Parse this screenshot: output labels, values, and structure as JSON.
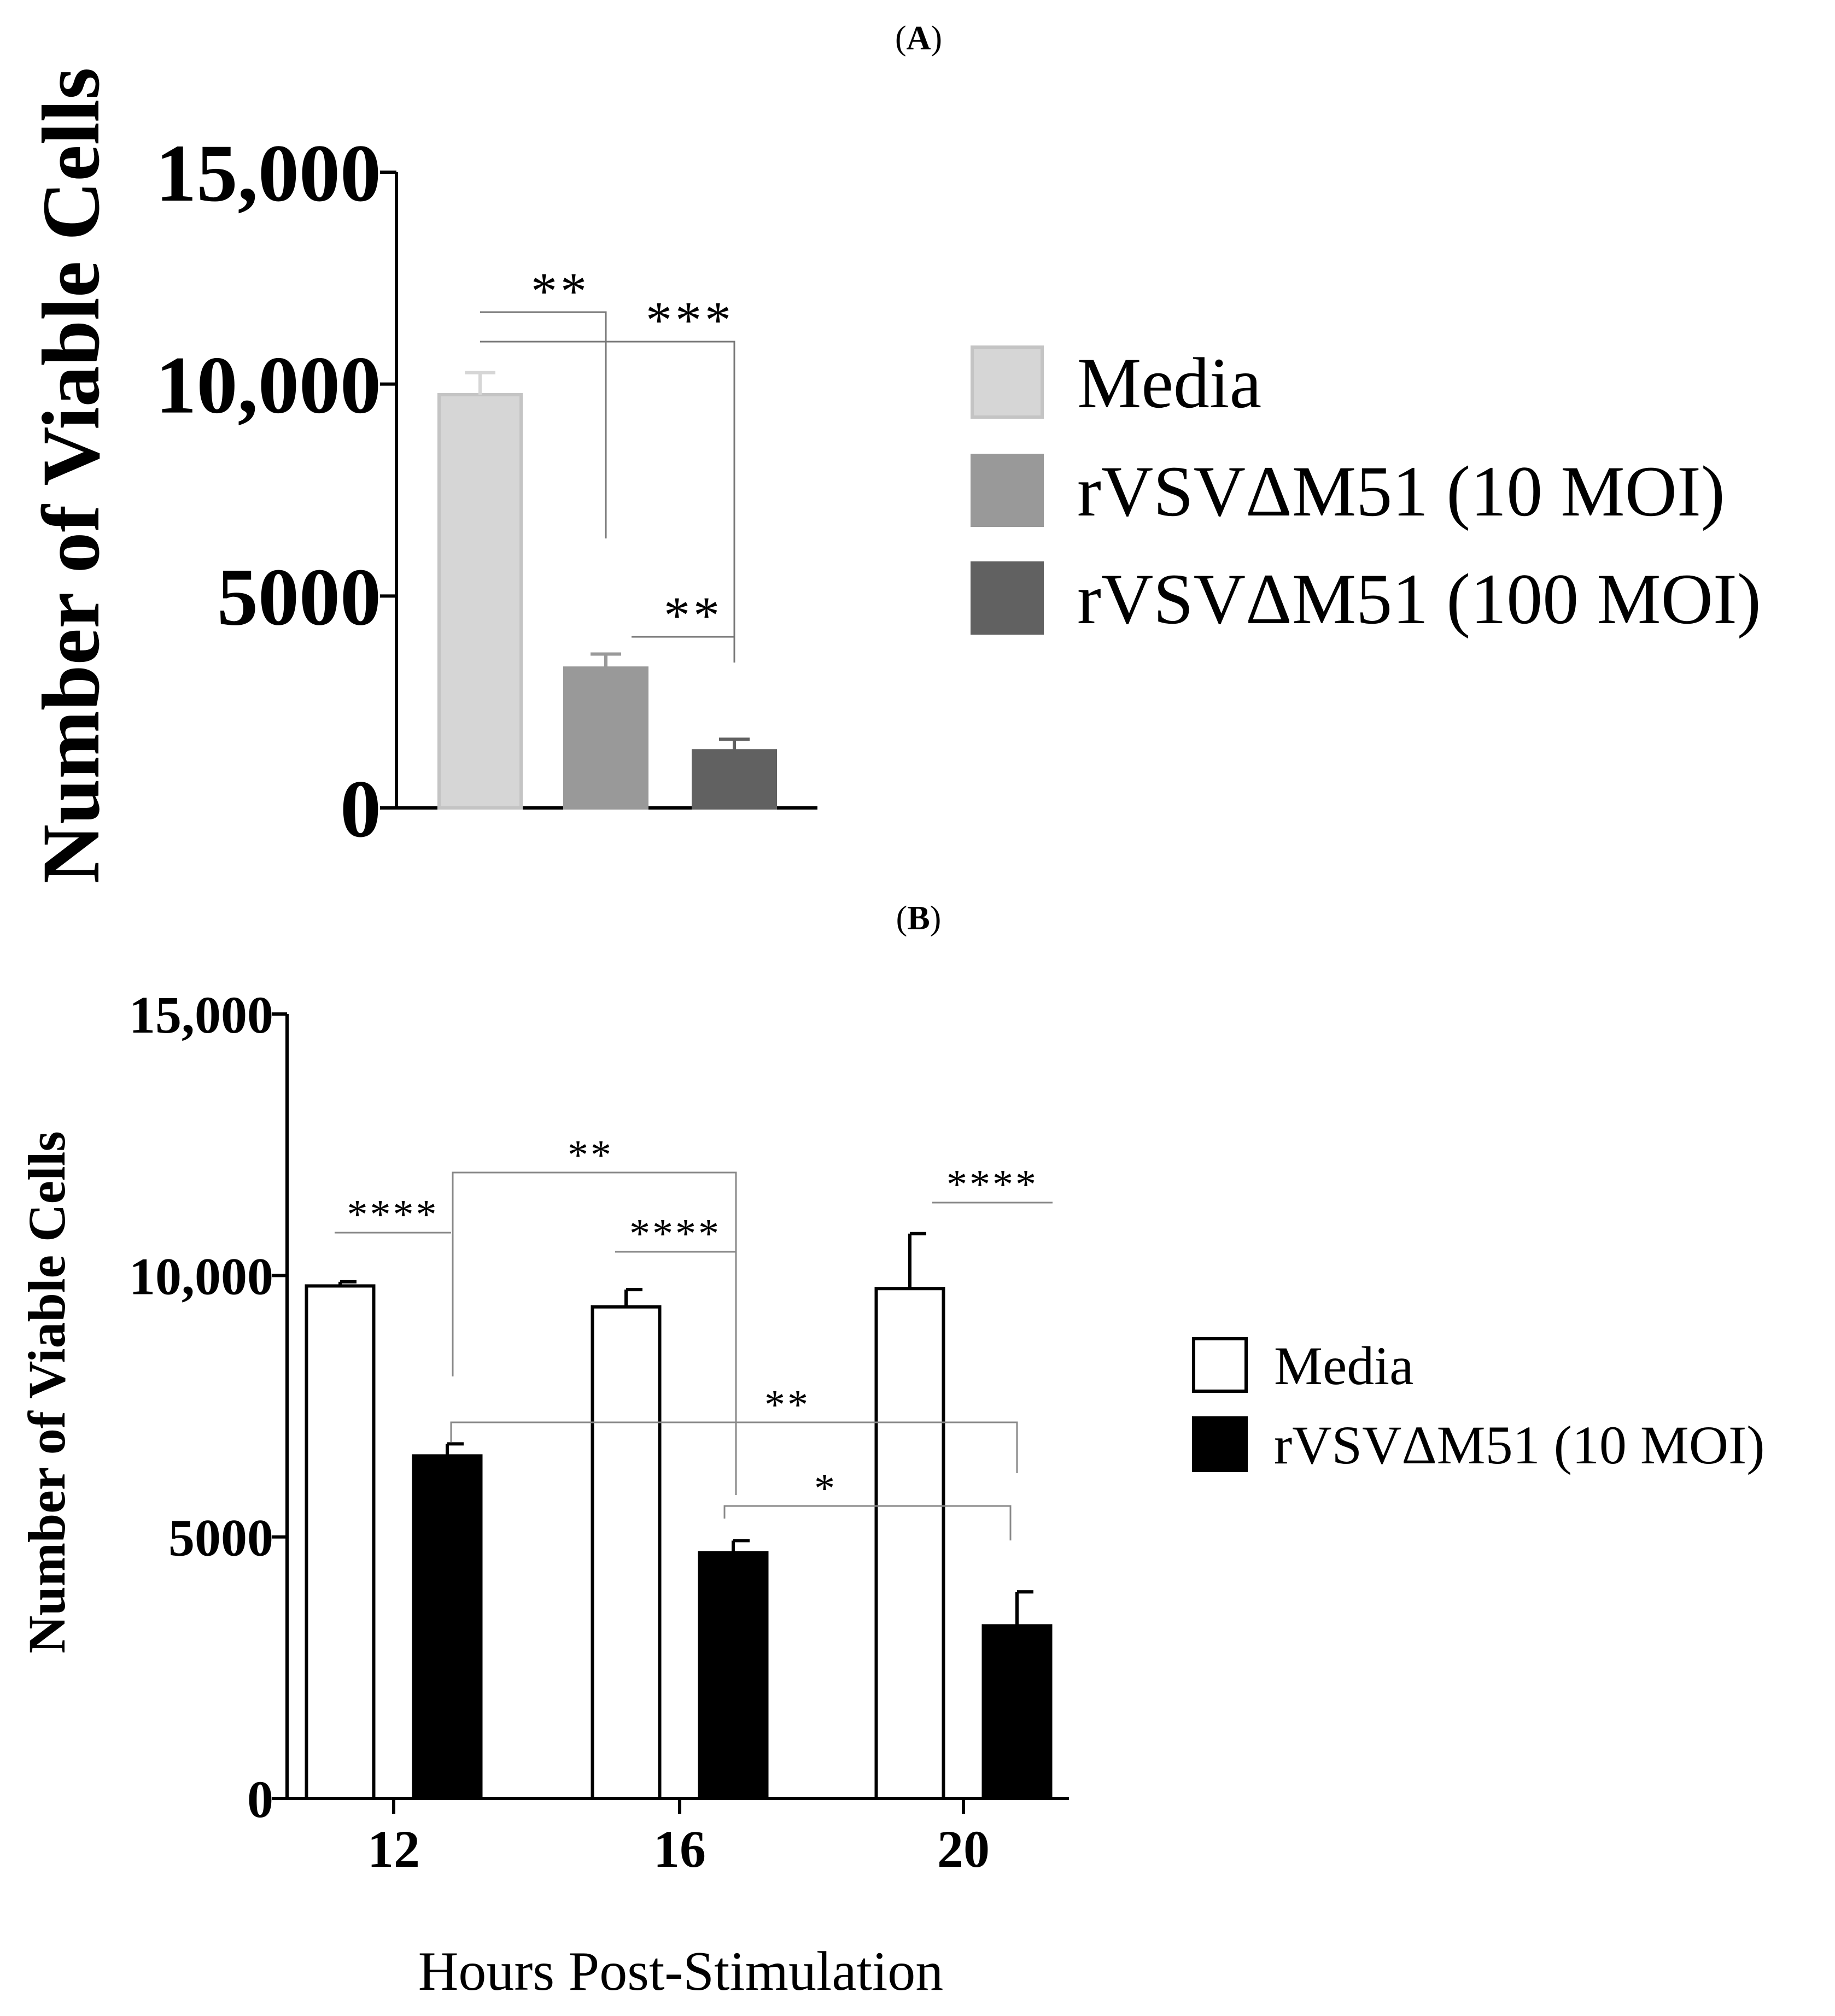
{
  "chart_data": [
    {
      "panel": "A",
      "type": "bar",
      "ylabel": "Number of Viable Cells",
      "ylim": [
        0,
        15000
      ],
      "yticks": [
        0,
        5000,
        10000,
        15000
      ],
      "ytick_labels": [
        "0",
        "5000",
        "10,000",
        "15,000"
      ],
      "categories": [
        "Media",
        "rVSVΔM51 (10 MOI)",
        "rVSVΔM51 (100 MOI)"
      ],
      "values": [
        9750,
        3300,
        1350
      ],
      "errors": [
        520,
        330,
        270
      ],
      "colors": [
        "#d6d6d6",
        "#999999",
        "#616161"
      ],
      "legend": {
        "position": "right",
        "entries": [
          {
            "label": "Media",
            "color": "#d6d6d6"
          },
          {
            "label": "rVSVΔM51 (10 MOI)",
            "color": "#999999"
          },
          {
            "label": "rVSVΔM51 (100 MOI)",
            "color": "#616161"
          }
        ]
      },
      "significance": [
        {
          "from": 0,
          "to": 1,
          "label": "**"
        },
        {
          "from": 0,
          "to": 2,
          "label": "***"
        },
        {
          "from": 1,
          "to": 2,
          "label": "**"
        }
      ]
    },
    {
      "panel": "B",
      "type": "bar",
      "xlabel": "Hours Post-Stimulation",
      "ylabel": "Number of Viable Cells",
      "ylim": [
        0,
        15000
      ],
      "yticks": [
        0,
        5000,
        10000,
        15000
      ],
      "ytick_labels": [
        "0",
        "5000",
        "10,000",
        "15,000"
      ],
      "categories": [
        "12",
        "16",
        "20"
      ],
      "series": [
        {
          "name": "Media",
          "color": "#ffffff",
          "values": [
            9800,
            9400,
            9750
          ],
          "errors": [
            80,
            330,
            1050
          ]
        },
        {
          "name": "rVSVΔM51 (10 MOI)",
          "color": "#000000",
          "values": [
            6550,
            4700,
            3300
          ],
          "errors": [
            230,
            230,
            650
          ]
        }
      ],
      "legend": {
        "position": "right"
      },
      "significance": [
        {
          "group": 0,
          "label": "****",
          "type": "within"
        },
        {
          "group": 1,
          "label": "****",
          "type": "within"
        },
        {
          "group": 2,
          "label": "****",
          "type": "within"
        },
        {
          "label": "**",
          "type": "between",
          "from_group": 0,
          "to_group": 1,
          "series": "rVSVΔM51 (10 MOI)"
        },
        {
          "label": "**",
          "type": "between",
          "from_group": 0,
          "to_group": 2,
          "series": "rVSVΔM51 (10 MOI)"
        },
        {
          "label": "*",
          "type": "between",
          "from_group": 1,
          "to_group": 2,
          "series": "rVSVΔM51 (10 MOI)"
        }
      ]
    }
  ]
}
